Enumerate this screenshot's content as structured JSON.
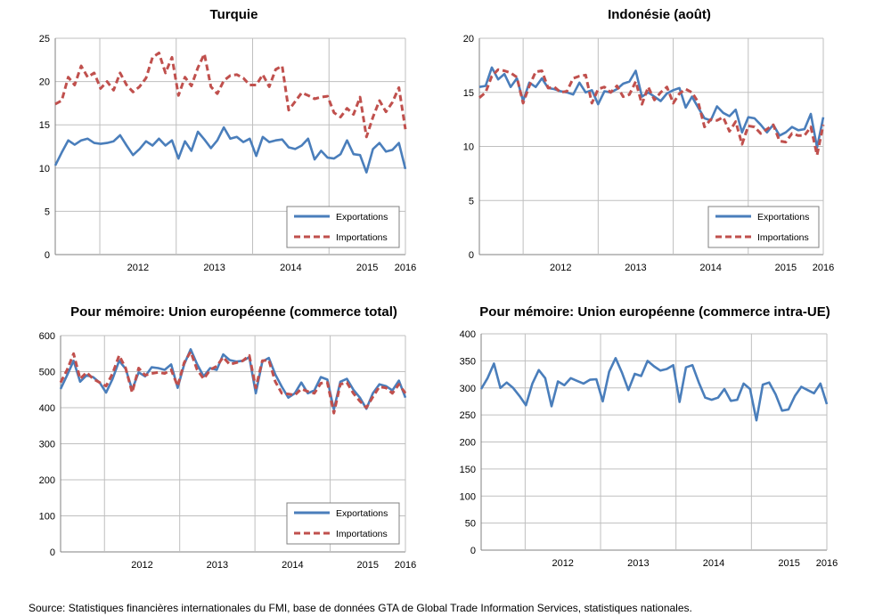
{
  "colors": {
    "exports": "#4a7ebb",
    "imports": "#c0504d"
  },
  "source": "Source: Statistiques financières internationales du FMI, base de données GTA de Global Trade Information Services, statistiques nationales.",
  "chart_data": [
    {
      "type": "line",
      "title": "Turquie",
      "xlabel": "",
      "ylabel": "",
      "ylim": [
        0,
        25
      ],
      "yticks": [
        "0",
        "5",
        "10",
        "15",
        "20",
        "25"
      ],
      "xticks": [
        "2012",
        "2013",
        "2014",
        "2015",
        "2016"
      ],
      "x_start": "2011-06",
      "x_end": "2016-01",
      "grid": true,
      "legend": "bottom-right",
      "legend_labels": [
        "Exportations",
        "Importations"
      ],
      "series": [
        {
          "name": "Exportations",
          "style": "solid",
          "values": [
            10.3,
            11.8,
            13.2,
            12.7,
            13.2,
            13.4,
            12.9,
            12.8,
            12.9,
            13.1,
            13.8,
            12.6,
            11.5,
            12.2,
            13.1,
            12.6,
            13.4,
            12.6,
            13.2,
            11.1,
            13.1,
            12.0,
            14.2,
            13.3,
            12.3,
            13.2,
            14.7,
            13.4,
            13.6,
            13.0,
            13.4,
            11.4,
            13.6,
            13.0,
            13.2,
            13.3,
            12.4,
            12.2,
            12.6,
            13.4,
            11.0,
            12.0,
            11.2,
            11.1,
            11.6,
            13.2,
            11.6,
            11.5,
            9.5,
            12.2,
            12.9,
            11.9,
            12.1,
            12.9,
            9.9
          ]
        },
        {
          "name": "Importations",
          "style": "dashed",
          "values": [
            17.4,
            17.8,
            20.5,
            19.6,
            21.8,
            20.5,
            21.0,
            19.2,
            20.0,
            19.0,
            21.0,
            19.6,
            18.8,
            19.4,
            20.4,
            22.8,
            23.3,
            21.0,
            22.8,
            18.4,
            20.5,
            19.5,
            21.6,
            23.2,
            19.4,
            18.6,
            20.1,
            20.7,
            20.8,
            20.4,
            19.6,
            19.6,
            20.8,
            19.4,
            21.4,
            21.8,
            16.7,
            17.7,
            18.7,
            18.4,
            18.0,
            18.2,
            18.3,
            16.4,
            15.9,
            16.9,
            16.2,
            18.2,
            13.6,
            15.9,
            17.8,
            16.5,
            17.6,
            19.3,
            14.5
          ]
        }
      ]
    },
    {
      "type": "line",
      "title": "Indonésie (août)",
      "xlabel": "",
      "ylabel": "",
      "ylim": [
        0,
        20
      ],
      "yticks": [
        "0",
        "5",
        "10",
        "15",
        "20"
      ],
      "xticks": [
        "2012",
        "2013",
        "2014",
        "2015",
        "2016"
      ],
      "x_start": "2011-06",
      "x_end": "2016-01",
      "grid": true,
      "legend": "bottom-right",
      "legend_labels": [
        "Exportations",
        "Importations"
      ],
      "series": [
        {
          "name": "Exportations",
          "style": "solid",
          "values": [
            15.5,
            15.6,
            17.3,
            16.2,
            16.7,
            15.5,
            16.3,
            14.2,
            15.9,
            15.5,
            16.3,
            15.4,
            15.3,
            15.1,
            15.0,
            14.8,
            15.9,
            15.0,
            15.2,
            13.9,
            15.1,
            15.0,
            15.3,
            15.8,
            16.0,
            17.0,
            14.6,
            15.0,
            14.6,
            14.2,
            14.9,
            15.2,
            15.4,
            13.6,
            14.6,
            13.6,
            12.6,
            12.4,
            13.7,
            13.1,
            12.8,
            13.4,
            11.3,
            12.7,
            12.6,
            12.0,
            11.3,
            12.0,
            11.0,
            11.3,
            11.8,
            11.5,
            11.6,
            13.0,
            9.9,
            12.7
          ]
        },
        {
          "name": "Importations",
          "style": "dashed",
          "values": [
            14.5,
            15.0,
            16.5,
            17.1,
            17.0,
            16.8,
            16.4,
            14.0,
            15.6,
            16.9,
            17.0,
            15.4,
            15.5,
            15.0,
            15.1,
            16.3,
            16.5,
            16.6,
            14.0,
            15.3,
            15.5,
            15.0,
            15.6,
            14.6,
            14.8,
            16.0,
            13.9,
            15.5,
            14.3,
            15.0,
            15.5,
            14.0,
            14.9,
            15.3,
            15.0,
            14.1,
            11.8,
            12.5,
            12.4,
            12.7,
            11.4,
            12.3,
            10.2,
            11.9,
            11.8,
            11.2,
            11.6,
            12.0,
            10.5,
            10.4,
            11.2,
            11.0,
            11.0,
            11.8,
            9.2,
            12.0
          ]
        }
      ]
    },
    {
      "type": "line",
      "title": "Pour mémoire: Union européenne (commerce total)",
      "xlabel": "",
      "ylabel": "",
      "ylim": [
        0,
        600
      ],
      "yticks": [
        "0",
        "100",
        "200",
        "300",
        "400",
        "500",
        "600"
      ],
      "xticks": [
        "2012",
        "2013",
        "2014",
        "2015",
        "2016"
      ],
      "x_start": "2011-06",
      "x_end": "2016-01",
      "grid": true,
      "legend": "bottom-right",
      "legend_labels": [
        "Exportations",
        "Importations"
      ],
      "series": [
        {
          "name": "Exportations",
          "style": "solid",
          "values": [
            452,
            490,
            530,
            472,
            490,
            485,
            470,
            442,
            480,
            530,
            508,
            450,
            498,
            487,
            512,
            510,
            505,
            520,
            455,
            520,
            562,
            520,
            487,
            510,
            505,
            548,
            532,
            528,
            530,
            540,
            440,
            528,
            538,
            492,
            458,
            428,
            440,
            470,
            440,
            448,
            485,
            478,
            395,
            472,
            480,
            450,
            428,
            397,
            440,
            465,
            460,
            448,
            475,
            428
          ]
        },
        {
          "name": "Importations",
          "style": "dashed",
          "values": [
            470,
            505,
            550,
            480,
            498,
            480,
            470,
            460,
            495,
            545,
            510,
            442,
            510,
            490,
            495,
            498,
            495,
            505,
            460,
            525,
            555,
            505,
            480,
            505,
            515,
            540,
            520,
            525,
            530,
            545,
            455,
            530,
            532,
            472,
            440,
            438,
            435,
            452,
            445,
            440,
            468,
            470,
            385,
            465,
            470,
            440,
            418,
            400,
            430,
            458,
            455,
            440,
            465,
            440
          ]
        }
      ]
    },
    {
      "type": "line",
      "title": "Pour mémoire: Union européenne (commerce intra-UE)",
      "xlabel": "",
      "ylabel": "",
      "ylim": [
        0,
        400
      ],
      "yticks": [
        "0",
        "50",
        "100",
        "150",
        "200",
        "250",
        "300",
        "350",
        "400"
      ],
      "xticks": [
        "2012",
        "2013",
        "2014",
        "2015",
        "2016"
      ],
      "x_start": "2011-06",
      "x_end": "2016-01",
      "grid": true,
      "legend": "none",
      "series": [
        {
          "name": "",
          "style": "solid",
          "values": [
            298,
            318,
            345,
            300,
            310,
            300,
            285,
            268,
            308,
            333,
            318,
            266,
            312,
            305,
            318,
            313,
            308,
            315,
            316,
            275,
            330,
            355,
            328,
            296,
            326,
            322,
            350,
            340,
            332,
            335,
            342,
            274,
            338,
            342,
            310,
            282,
            278,
            282,
            298,
            276,
            278,
            308,
            298,
            240,
            306,
            310,
            288,
            258,
            260,
            285,
            302,
            296,
            290,
            308,
            270
          ]
        }
      ]
    }
  ]
}
